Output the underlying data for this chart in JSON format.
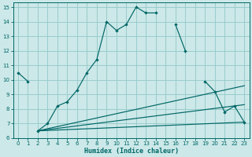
{
  "title": "",
  "xlabel": "Humidex (Indice chaleur)",
  "bg_color": "#cce8e8",
  "grid_color": "#99cccc",
  "line_color": "#006666",
  "xlim": [
    -0.5,
    23.5
  ],
  "ylim": [
    6,
    15.3
  ],
  "xticks": [
    0,
    1,
    2,
    3,
    4,
    5,
    6,
    7,
    8,
    9,
    10,
    11,
    12,
    13,
    14,
    15,
    16,
    17,
    18,
    19,
    20,
    21,
    22,
    23
  ],
  "yticks": [
    6,
    7,
    8,
    9,
    10,
    11,
    12,
    13,
    14,
    15
  ],
  "line1_x": [
    0,
    1,
    2,
    3,
    4,
    5,
    6,
    7,
    8,
    9,
    10,
    11,
    12,
    13,
    14,
    16,
    17,
    19,
    20,
    21,
    22,
    23
  ],
  "line1_y": [
    10.5,
    9.9,
    6.5,
    7.0,
    8.2,
    8.5,
    9.3,
    10.5,
    11.4,
    14.0,
    13.4,
    13.8,
    15.0,
    14.6,
    14.6,
    13.8,
    12.0,
    9.9,
    9.2,
    7.8,
    8.2,
    7.1
  ],
  "line1_gaps_after": [
    1,
    13
  ],
  "line2_x": [
    2,
    23
  ],
  "line2_y": [
    6.5,
    7.1
  ],
  "line3_x": [
    2,
    23
  ],
  "line3_y": [
    6.5,
    8.3
  ],
  "line4_x": [
    2,
    23
  ],
  "line4_y": [
    6.5,
    9.6
  ],
  "xlabel_fontsize": 6,
  "tick_fontsize": 5
}
